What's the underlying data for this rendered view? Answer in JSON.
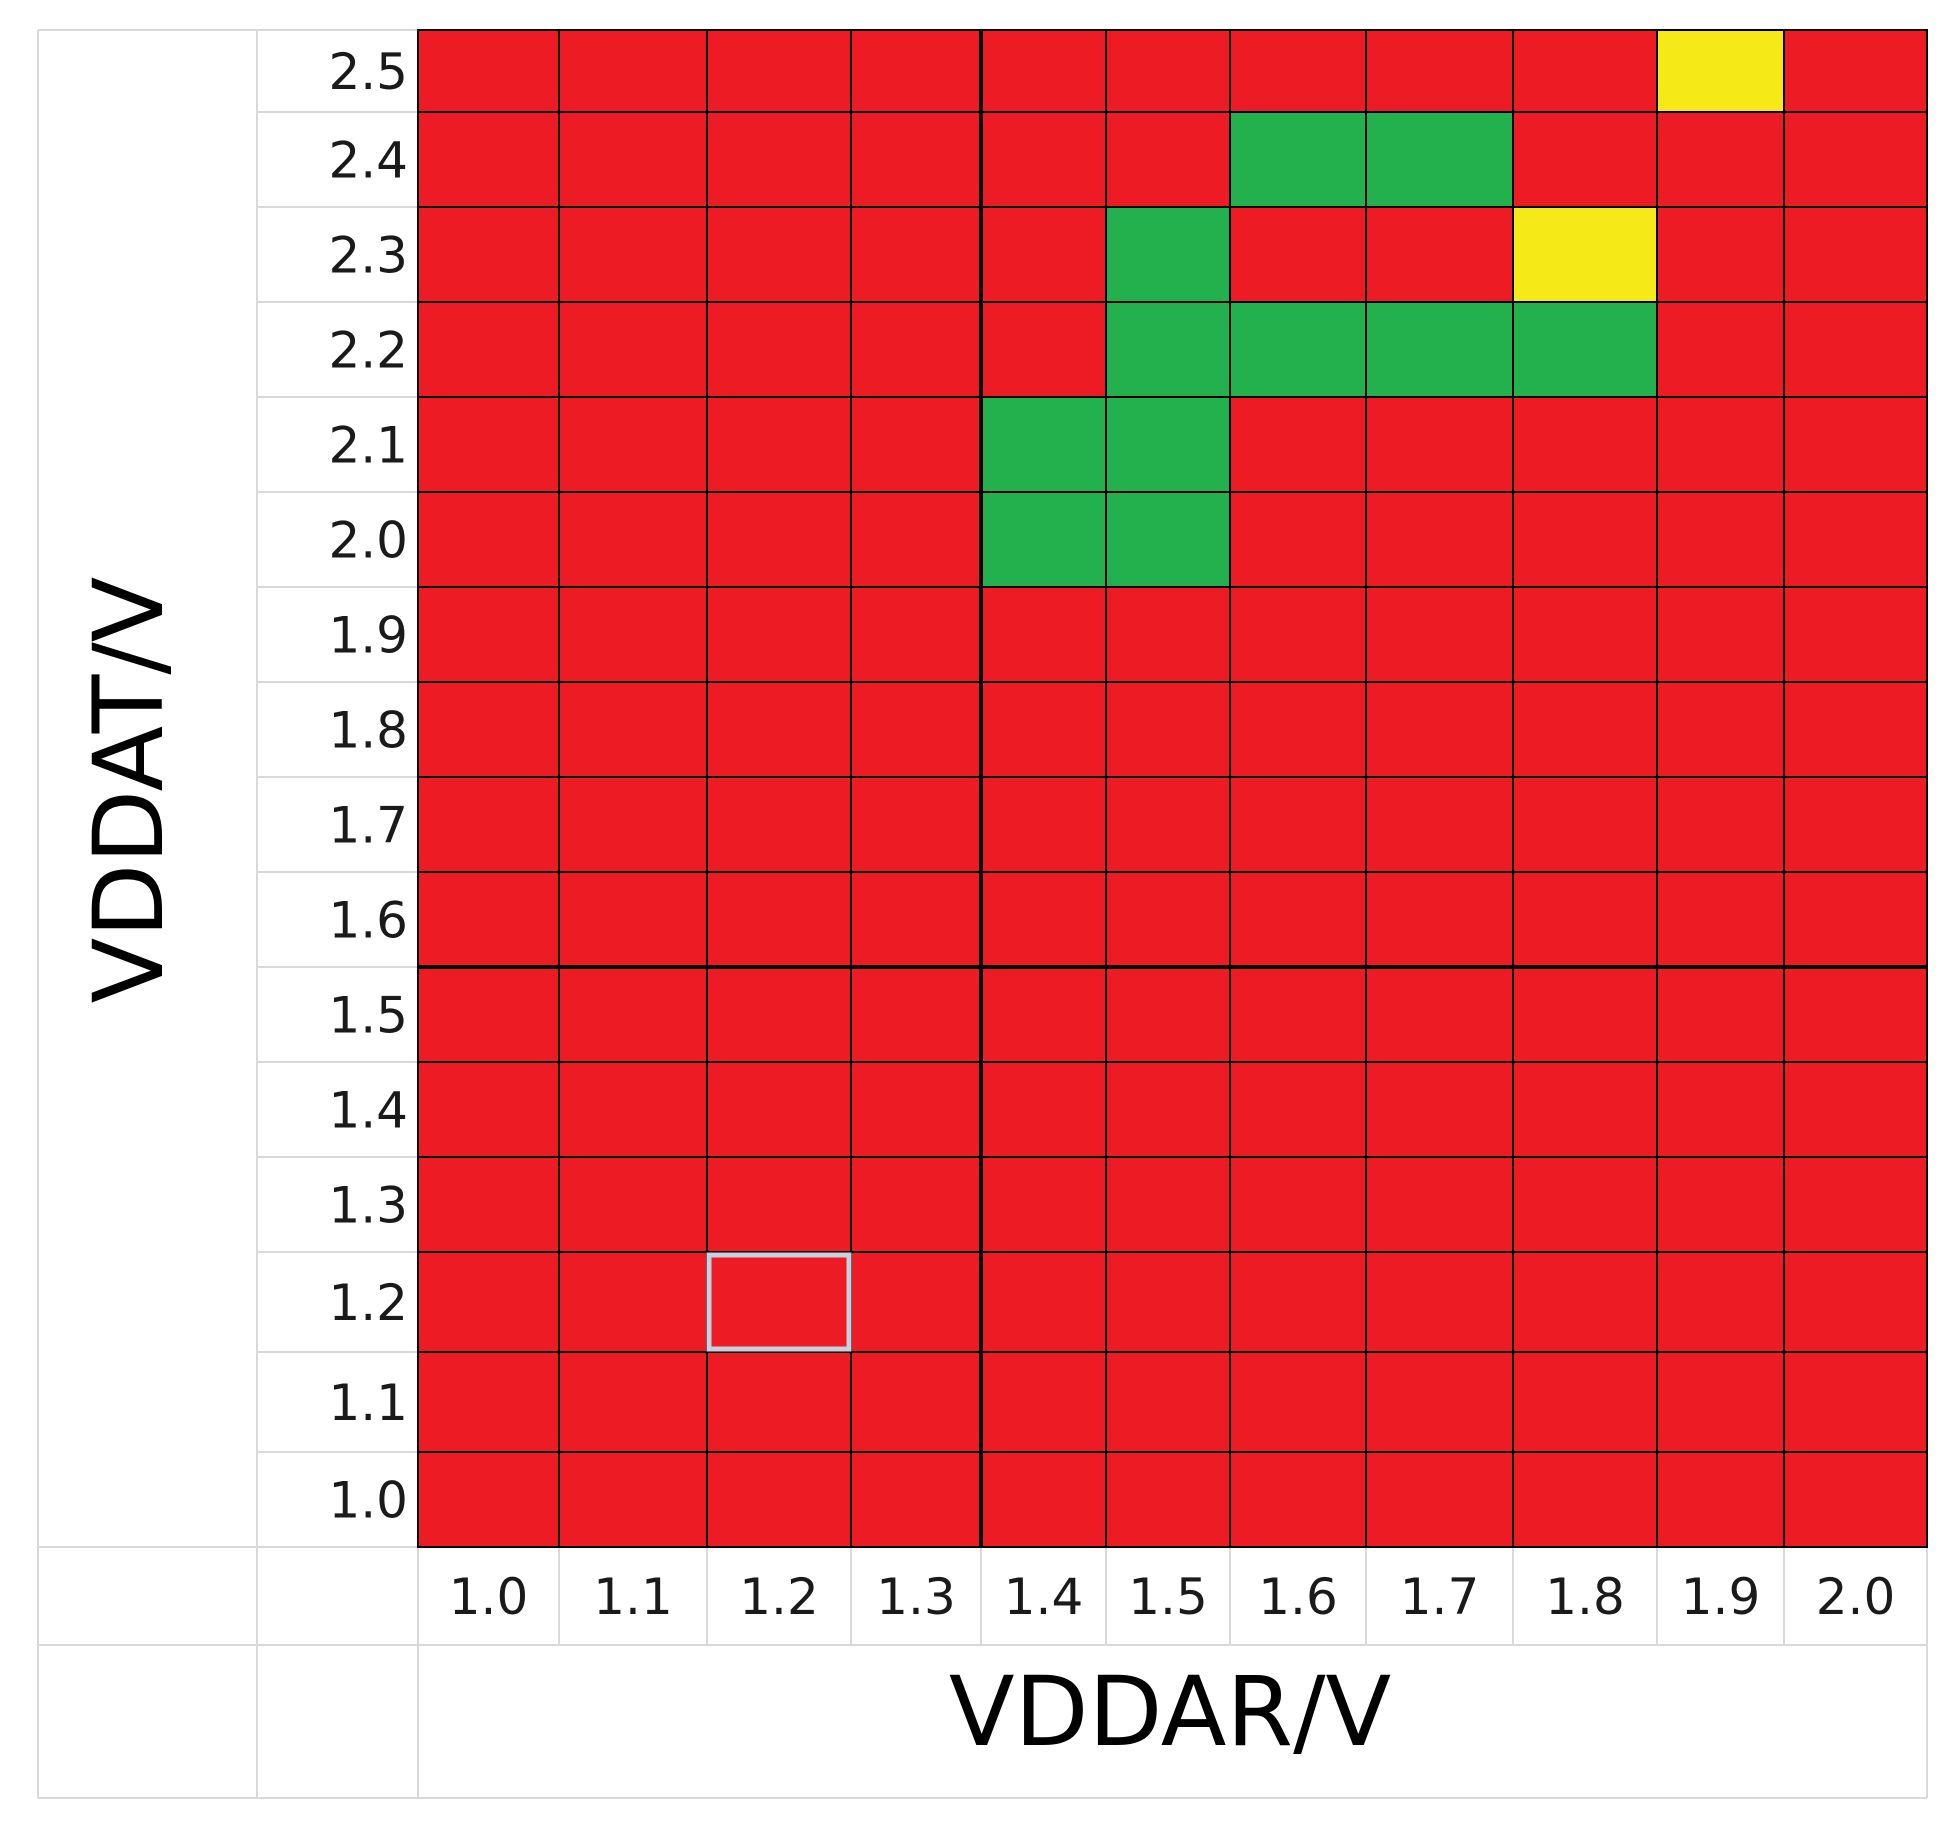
{
  "chart_data": {
    "type": "heatmap",
    "xlabel": "VDDAR/V",
    "ylabel": "VDDAT/V",
    "x_ticks": [
      "1.0",
      "1.1",
      "1.2",
      "1.3",
      "1.4",
      "1.5",
      "1.6",
      "1.7",
      "1.8",
      "1.9",
      "2.0"
    ],
    "y_ticks": [
      "2.5",
      "2.4",
      "2.3",
      "2.2",
      "2.1",
      "2.0",
      "1.9",
      "1.8",
      "1.7",
      "1.6",
      "1.5",
      "1.4",
      "1.3",
      "1.2",
      "1.1",
      "1.0"
    ],
    "colors": {
      "R": "#ed1c24",
      "G": "#22b14c",
      "Y": "#f5e917"
    },
    "rows": [
      [
        "R",
        "R",
        "R",
        "R",
        "R",
        "R",
        "R",
        "R",
        "R",
        "Y",
        "R"
      ],
      [
        "R",
        "R",
        "R",
        "R",
        "R",
        "R",
        "G",
        "G",
        "R",
        "R",
        "R"
      ],
      [
        "R",
        "R",
        "R",
        "R",
        "R",
        "G",
        "R",
        "R",
        "Y",
        "R",
        "R"
      ],
      [
        "R",
        "R",
        "R",
        "R",
        "R",
        "G",
        "G",
        "G",
        "G",
        "R",
        "R"
      ],
      [
        "R",
        "R",
        "R",
        "R",
        "G",
        "G",
        "R",
        "R",
        "R",
        "R",
        "R"
      ],
      [
        "R",
        "R",
        "R",
        "R",
        "G",
        "G",
        "R",
        "R",
        "R",
        "R",
        "R"
      ],
      [
        "R",
        "R",
        "R",
        "R",
        "R",
        "R",
        "R",
        "R",
        "R",
        "R",
        "R"
      ],
      [
        "R",
        "R",
        "R",
        "R",
        "R",
        "R",
        "R",
        "R",
        "R",
        "R",
        "R"
      ],
      [
        "R",
        "R",
        "R",
        "R",
        "R",
        "R",
        "R",
        "R",
        "R",
        "R",
        "R"
      ],
      [
        "R",
        "R",
        "R",
        "R",
        "R",
        "R",
        "R",
        "R",
        "R",
        "R",
        "R"
      ],
      [
        "R",
        "R",
        "R",
        "R",
        "R",
        "R",
        "R",
        "R",
        "R",
        "R",
        "R"
      ],
      [
        "R",
        "R",
        "R",
        "R",
        "R",
        "R",
        "R",
        "R",
        "R",
        "R",
        "R"
      ],
      [
        "R",
        "R",
        "R",
        "R",
        "R",
        "R",
        "R",
        "R",
        "R",
        "R",
        "R"
      ],
      [
        "R",
        "R",
        "R",
        "R",
        "R",
        "R",
        "R",
        "R",
        "R",
        "R",
        "R"
      ],
      [
        "R",
        "R",
        "R",
        "R",
        "R",
        "R",
        "R",
        "R",
        "R",
        "R",
        "R"
      ],
      [
        "R",
        "R",
        "R",
        "R",
        "R",
        "R",
        "R",
        "R",
        "R",
        "R",
        "R"
      ]
    ],
    "highlighted_cell": {
      "x": "1.2",
      "y": "1.2"
    }
  }
}
